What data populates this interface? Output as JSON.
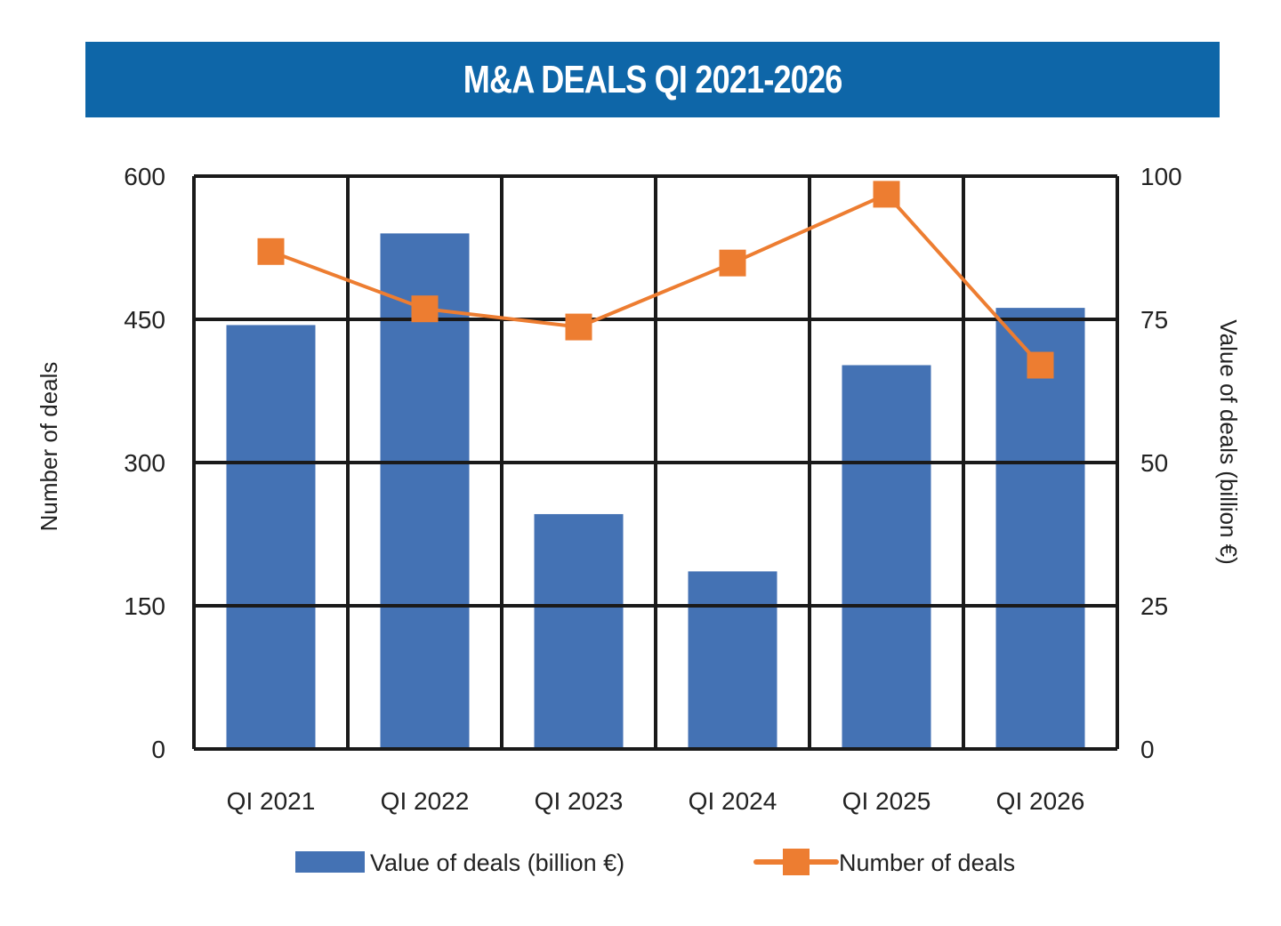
{
  "chart_data": {
    "type": "bar",
    "title": "M&A DEALS QI 2021-2026",
    "categories": [
      "QI 2021",
      "QI 2022",
      "QI 2023",
      "QI 2024",
      "QI 2025",
      "QI 2026"
    ],
    "series": [
      {
        "name": "Value of deals (billion €)",
        "type": "bar",
        "axis": "right",
        "color": "#4472b4",
        "values": [
          74,
          90,
          41,
          31,
          67,
          77
        ]
      },
      {
        "name": "Number of deals",
        "type": "line",
        "axis": "left",
        "color": "#ed7d31",
        "marker": "square",
        "values": [
          521,
          461,
          442,
          509,
          581,
          402
        ]
      }
    ],
    "ylabel_left": "Number of deals",
    "ylabel_right": "Value of deals (billion €)",
    "ylim_left": [
      0,
      600
    ],
    "ylim_right": [
      0,
      100
    ],
    "yticks_left": [
      "0",
      "150",
      "300",
      "450",
      "600"
    ],
    "yticks_right": [
      "0",
      "25",
      "50",
      "75",
      "100"
    ],
    "grid": true,
    "legend_position": "bottom"
  },
  "colors": {
    "title_bar": "#0e66a8",
    "bar": "#4472b4",
    "line": "#ed7d31",
    "grid": "#1a1a1a"
  }
}
